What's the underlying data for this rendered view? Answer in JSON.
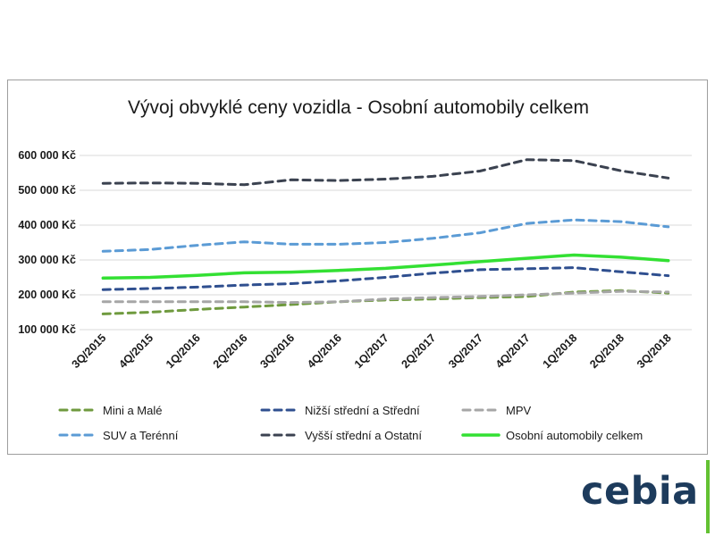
{
  "chart_data": {
    "type": "line",
    "title": "Vývoj obvyklé ceny vozidla - Osobní automobily celkem",
    "xlabel": "",
    "ylabel": "",
    "x": [
      "3Q/2015",
      "4Q/2015",
      "1Q/2016",
      "2Q/2016",
      "3Q/2016",
      "4Q/2016",
      "1Q/2017",
      "2Q/2017",
      "3Q/2017",
      "4Q/2017",
      "1Q/2018",
      "2Q/2018",
      "3Q/2018"
    ],
    "ylim": [
      100000,
      600000
    ],
    "yticks": [
      100000,
      200000,
      300000,
      400000,
      500000,
      600000
    ],
    "ytick_labels": [
      "100 000 Kč",
      "200 000 Kč",
      "300 000 Kč",
      "400 000 Kč",
      "500 000 Kč",
      "600 000 Kč"
    ],
    "grid": true,
    "legend_position": "bottom",
    "series": [
      {
        "name": "Mini a Malé",
        "color": "#6f9a3e",
        "dash": "dashed",
        "values": [
          145000,
          150000,
          158000,
          165000,
          172000,
          180000,
          185000,
          188000,
          192000,
          195000,
          208000,
          212000,
          205000
        ]
      },
      {
        "name": "Nižší střední a Střední",
        "color": "#2f4f8f",
        "dash": "dashed",
        "values": [
          215000,
          218000,
          222000,
          228000,
          232000,
          240000,
          250000,
          262000,
          272000,
          275000,
          278000,
          266000,
          255000
        ]
      },
      {
        "name": "MPV",
        "color": "#a6a6a6",
        "dash": "dashed",
        "values": [
          180000,
          180000,
          180000,
          180000,
          178000,
          180000,
          188000,
          192000,
          195000,
          200000,
          205000,
          210000,
          208000
        ]
      },
      {
        "name": "SUV a Terénní",
        "color": "#5b9bd5",
        "dash": "dashed",
        "values": [
          325000,
          330000,
          342000,
          352000,
          345000,
          345000,
          350000,
          362000,
          378000,
          405000,
          415000,
          410000,
          395000
        ]
      },
      {
        "name": "Vyšší střední a Ostatní",
        "color": "#3b4250",
        "dash": "dashed",
        "values": [
          520000,
          521000,
          520000,
          516000,
          530000,
          528000,
          532000,
          540000,
          555000,
          588000,
          585000,
          556000,
          535000
        ]
      },
      {
        "name": "Osobní automobily celkem",
        "color": "#33e033",
        "dash": "solid",
        "values": [
          248000,
          250000,
          256000,
          263000,
          265000,
          270000,
          276000,
          285000,
          295000,
          305000,
          314000,
          308000,
          298000
        ]
      }
    ]
  },
  "logo": {
    "text": "cebia",
    "accent_color": "#63c132",
    "text_color": "#1d3b5c"
  }
}
